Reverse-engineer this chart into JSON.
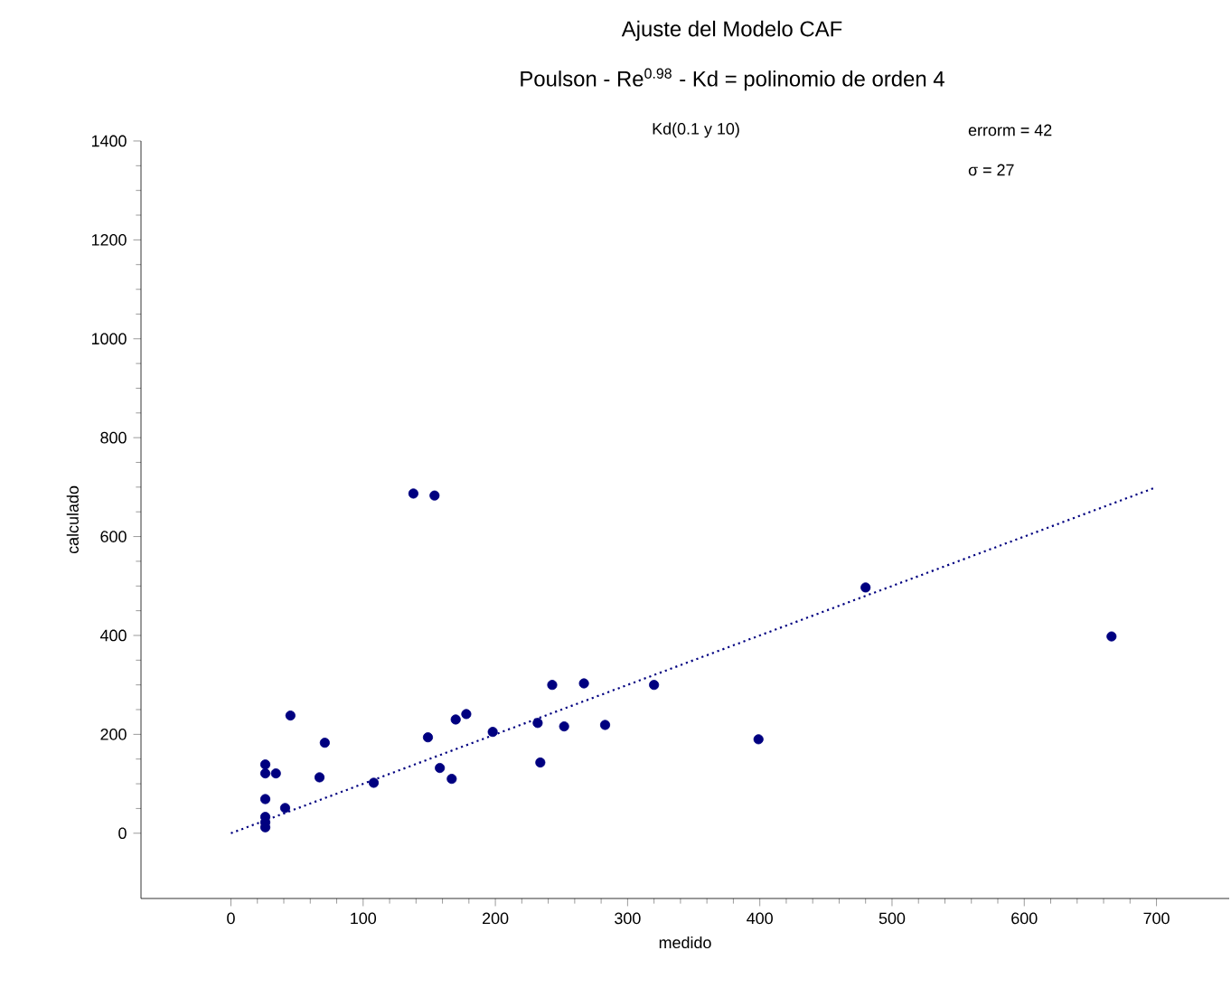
{
  "chart_data": {
    "type": "scatter",
    "title": "Ajuste del Modelo CAF",
    "subtitle": "Poulson - Re$^{0.98}$ - Kd = polinomio de orden 4",
    "xlabel": "medido",
    "ylabel": "calculado",
    "annotations": [
      "Kd(0.1 y 10)",
      "errorm = 42",
      "σ = 27"
    ],
    "xlim": [
      -68,
      755
    ],
    "ylim": [
      -132,
      1400
    ],
    "xticks": [
      0,
      100,
      200,
      300,
      400,
      500,
      600,
      700
    ],
    "yticks": [
      0,
      200,
      400,
      600,
      800,
      1000,
      1200,
      1400
    ],
    "grid": false,
    "series": [
      {
        "color": "#000080",
        "marker": "circle",
        "x": [
          138,
          154,
          480,
          666,
          243,
          267,
          320,
          149,
          170,
          178,
          198,
          232,
          252,
          283,
          399,
          158,
          167,
          234,
          45,
          71,
          67,
          108,
          41,
          26,
          26,
          26,
          34,
          26,
          26,
          26
        ],
        "values": [
          687,
          683,
          497,
          398,
          300,
          303,
          300,
          194,
          230,
          241,
          205,
          223,
          216,
          219,
          190,
          132,
          110,
          143,
          238,
          183,
          113,
          102,
          51,
          69,
          139,
          121,
          121,
          33,
          22,
          12
        ]
      },
      {
        "type": "line",
        "color": "#000080",
        "line_style": "dotted",
        "marker": "none",
        "x": [
          0,
          700
        ],
        "values": [
          0,
          700
        ]
      }
    ]
  }
}
